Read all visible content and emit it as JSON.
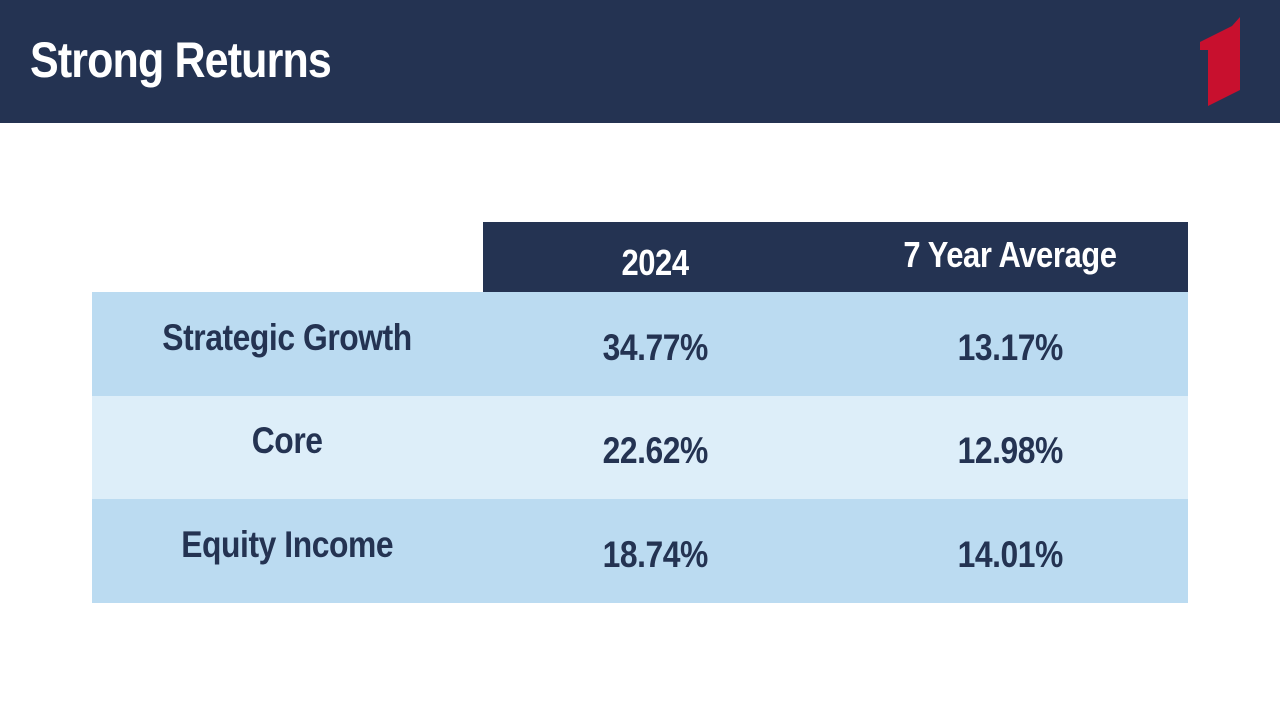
{
  "slide": {
    "title": "Strong Returns"
  },
  "colors": {
    "navy": "#243352",
    "row_dark": "#bbdbf1",
    "row_light": "#ddeef9",
    "logo_red": "#c8102e"
  },
  "logo": {
    "icon": "numeral-one-logo-icon"
  },
  "table": {
    "columns": [
      "2024",
      "7 Year Average"
    ],
    "rows": [
      {
        "label": "Strategic Growth",
        "year_2024": "34.77%",
        "seven_year_avg": "13.17%"
      },
      {
        "label": "Core",
        "year_2024": "22.62%",
        "seven_year_avg": "12.98%"
      },
      {
        "label": "Equity Income",
        "year_2024": "18.74%",
        "seven_year_avg": "14.01%"
      }
    ]
  }
}
